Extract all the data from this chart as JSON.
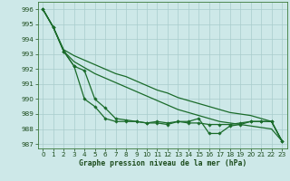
{
  "title": "Graphe pression niveau de la mer (hPa)",
  "background_color": "#cde8e8",
  "grid_color": "#a8cccc",
  "line_color": "#1a6b2a",
  "xlim": [
    -0.5,
    23.5
  ],
  "ylim": [
    986.7,
    996.5
  ],
  "yticks": [
    987,
    988,
    989,
    990,
    991,
    992,
    993,
    994,
    995,
    996
  ],
  "xticks": [
    0,
    1,
    2,
    3,
    4,
    5,
    6,
    7,
    8,
    9,
    10,
    11,
    12,
    13,
    14,
    15,
    16,
    17,
    18,
    19,
    20,
    21,
    22,
    23
  ],
  "series": [
    {
      "x": [
        0,
        1,
        2,
        3,
        4,
        5,
        6,
        7,
        8,
        9,
        10,
        11,
        12,
        13,
        14,
        15,
        16,
        17,
        18,
        19,
        20,
        21,
        22,
        23
      ],
      "y": [
        996.0,
        994.8,
        993.2,
        992.2,
        990.0,
        989.5,
        988.7,
        988.5,
        988.5,
        988.5,
        988.4,
        988.5,
        988.4,
        988.5,
        988.5,
        988.7,
        987.7,
        987.7,
        988.2,
        988.3,
        988.5,
        988.5,
        988.5,
        987.2
      ],
      "marker": true
    },
    {
      "x": [
        0,
        1,
        2,
        3,
        4,
        5,
        6,
        7,
        8,
        9,
        10,
        11,
        12,
        13,
        14,
        15,
        16,
        17,
        18,
        19,
        20,
        21,
        22,
        23
      ],
      "y": [
        996.0,
        994.8,
        993.2,
        992.5,
        992.1,
        991.7,
        991.4,
        991.1,
        990.8,
        990.5,
        990.2,
        989.9,
        989.6,
        989.3,
        989.1,
        988.9,
        988.7,
        988.5,
        988.4,
        988.3,
        988.2,
        988.1,
        988.0,
        987.2
      ],
      "marker": false
    },
    {
      "x": [
        0,
        1,
        2,
        3,
        4,
        5,
        6,
        7,
        8,
        9,
        10,
        11,
        12,
        13,
        14,
        15,
        16,
        17,
        18,
        19,
        20,
        21,
        22,
        23
      ],
      "y": [
        996.0,
        994.8,
        993.3,
        992.9,
        992.6,
        992.3,
        992.0,
        991.7,
        991.5,
        991.2,
        990.9,
        990.6,
        990.4,
        990.1,
        989.9,
        989.7,
        989.5,
        989.3,
        989.1,
        989.0,
        988.9,
        988.7,
        988.5,
        987.2
      ],
      "marker": false
    },
    {
      "x": [
        0,
        1,
        2,
        3,
        4,
        5,
        6,
        7,
        8,
        9,
        10,
        11,
        12,
        13,
        14,
        15,
        16,
        17,
        18,
        19,
        20,
        21,
        22,
        23
      ],
      "y": [
        996.0,
        994.8,
        993.2,
        992.2,
        991.9,
        990.0,
        989.4,
        988.7,
        988.6,
        988.5,
        988.4,
        988.4,
        988.3,
        988.5,
        988.4,
        988.4,
        988.3,
        988.3,
        988.3,
        988.4,
        988.5,
        988.5,
        988.5,
        987.2
      ],
      "marker": true
    }
  ]
}
